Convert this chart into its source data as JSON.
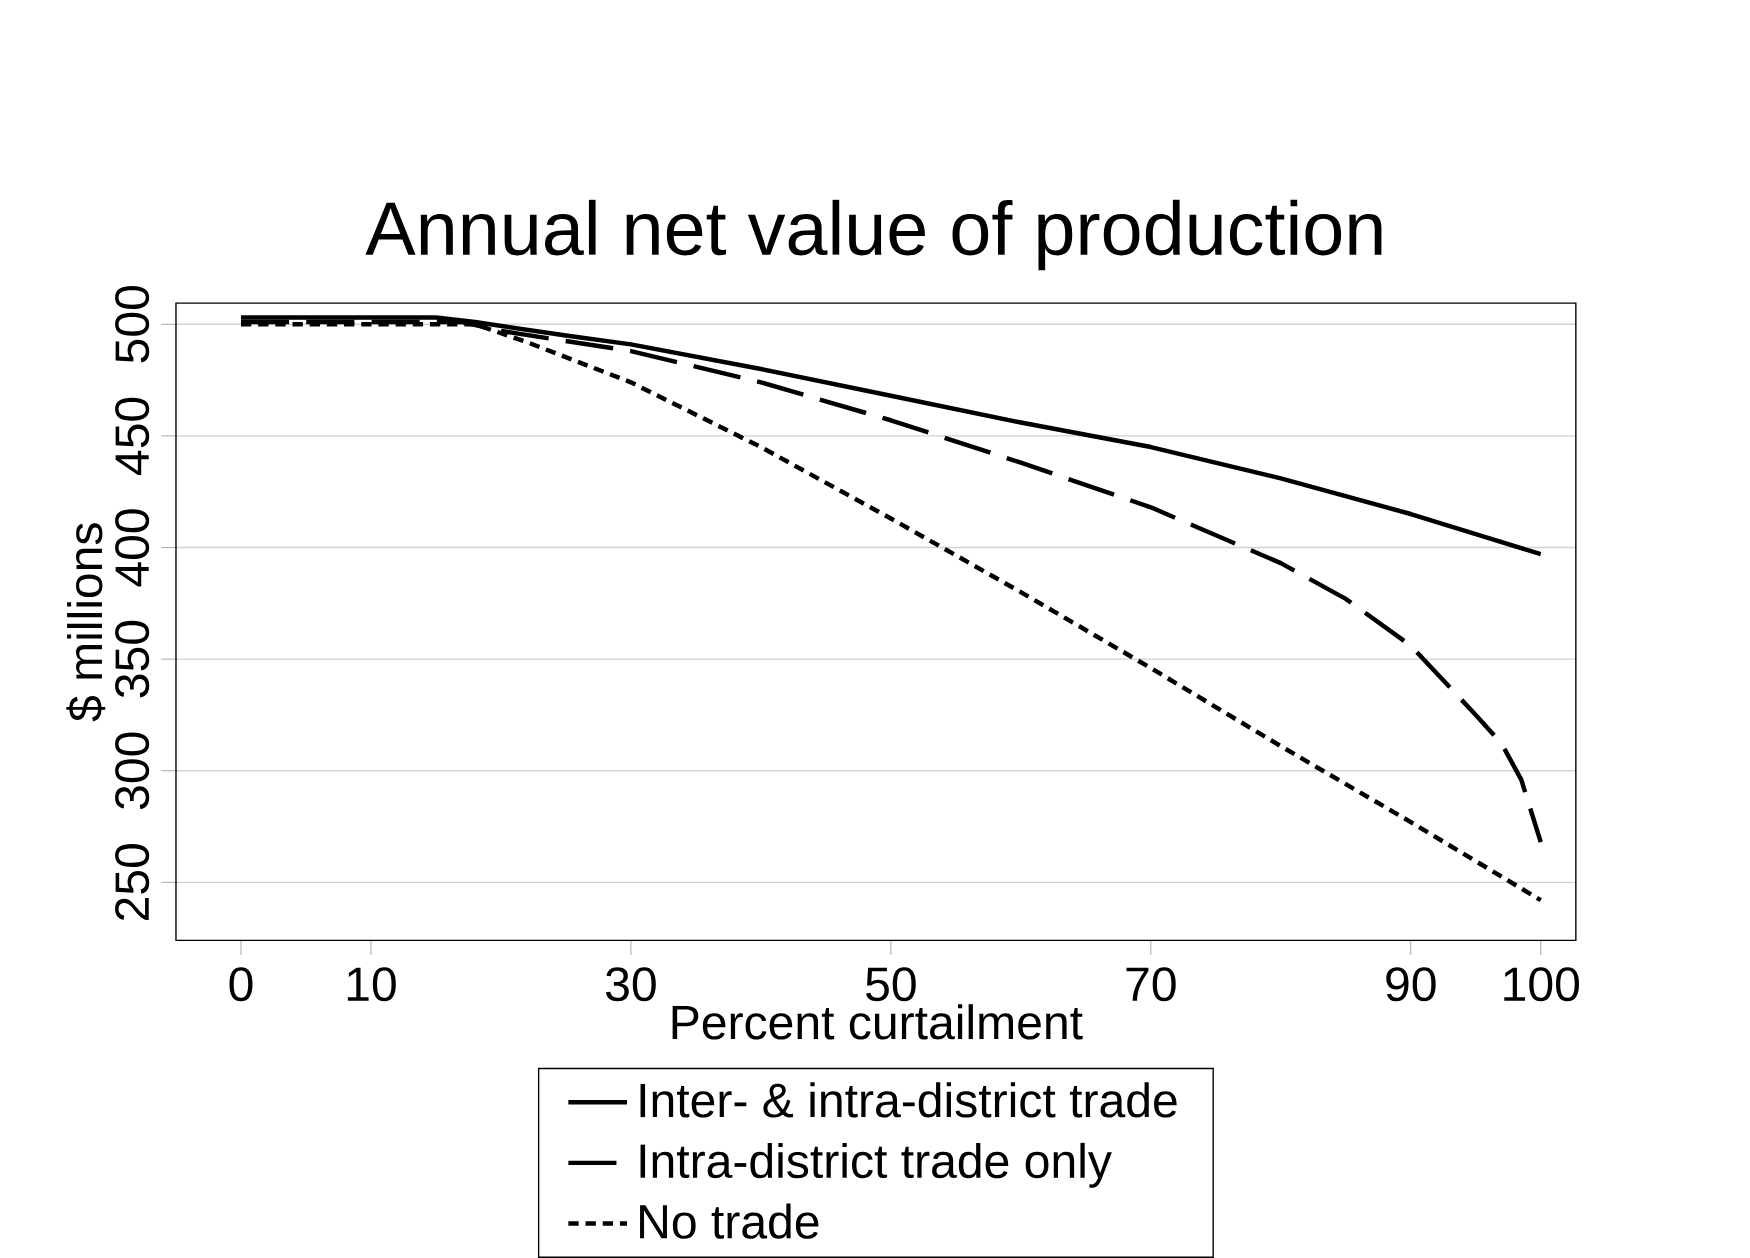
{
  "chart_data": {
    "type": "line",
    "title": "Annual net value of production",
    "xlabel": "Percent curtailment",
    "ylabel": "$ millions",
    "xlim": [
      -5,
      102.7
    ],
    "ylim": [
      224,
      509.5
    ],
    "xticks": [
      0,
      10,
      30,
      50,
      70,
      90,
      100
    ],
    "yticks": [
      250,
      300,
      350,
      400,
      450,
      500
    ],
    "grid": "y",
    "legend": "bottom",
    "series": [
      {
        "name": "Inter- & intra-district trade",
        "color": "#000000",
        "line_style": "solid",
        "x": [
          0,
          10,
          15,
          18,
          25,
          30,
          40,
          50,
          60,
          70,
          80,
          90,
          95,
          100
        ],
        "values": [
          503,
          503,
          503,
          501,
          495,
          491,
          480,
          468,
          456,
          445,
          431,
          415,
          406,
          397
        ]
      },
      {
        "name": "Intra-district trade only",
        "color": "#000000",
        "line_style": "dashed",
        "x": [
          0,
          10,
          17,
          20,
          30,
          40,
          50,
          60,
          70,
          80,
          85,
          90,
          95,
          97,
          98.5,
          100
        ],
        "values": [
          501,
          501,
          501,
          497,
          488,
          474,
          457,
          438,
          418,
          393,
          377,
          356,
          325,
          312,
          296,
          268
        ]
      },
      {
        "name": "No trade",
        "color": "#000000",
        "line_style": "dotted",
        "x": [
          0,
          10,
          18,
          22,
          30,
          40,
          50,
          60,
          70,
          80,
          90,
          100
        ],
        "values": [
          500,
          500,
          500,
          492,
          474,
          445,
          413,
          380,
          346,
          311,
          277,
          242
        ]
      }
    ]
  }
}
